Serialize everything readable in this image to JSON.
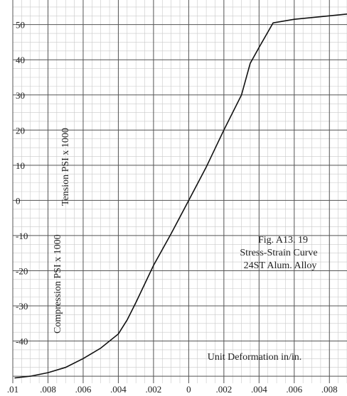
{
  "chart_data": {
    "type": "line",
    "caption": [
      "Fig. A13. 19",
      "Stress-Strain Curve",
      "24ST Alum. Alloy"
    ],
    "xlabel": "Unit Deformation in/in.",
    "ylabel_top": "Tension PSI x 1000",
    "ylabel_bottom": "Compression PSI x 1000",
    "xlim": [
      -0.01,
      0.009
    ],
    "ylim": [
      -52,
      57
    ],
    "x_ticks": [
      -0.01,
      -0.008,
      -0.006,
      -0.004,
      -0.002,
      0,
      0.002,
      0.004,
      0.006,
      0.008
    ],
    "x_tick_labels": [
      ".01",
      ".008",
      ".006",
      ".004",
      ".002",
      "0",
      ".002",
      ".004",
      ".006",
      ".008"
    ],
    "y_ticks": [
      50,
      40,
      30,
      20,
      10,
      0,
      -10,
      -20,
      -30,
      -40
    ],
    "y_tick_labels": [
      "50",
      "40",
      "30",
      "20",
      "10",
      "0",
      "-10",
      "-20",
      "-30",
      "-40"
    ],
    "grid": true,
    "series": [
      {
        "values": [
          [
            -0.0099,
            -50.5
          ],
          [
            -0.009,
            -50.0
          ],
          [
            -0.008,
            -49.0
          ],
          [
            -0.007,
            -47.5
          ],
          [
            -0.006,
            -45.0
          ],
          [
            -0.005,
            -42.0
          ],
          [
            -0.004,
            -38.0
          ],
          [
            -0.0035,
            -34.0
          ],
          [
            -0.003,
            -29.0
          ],
          [
            -0.002,
            -18.5
          ],
          [
            -0.001,
            -9.5
          ],
          [
            0,
            0
          ],
          [
            0.001,
            9.5
          ],
          [
            0.002,
            20.0
          ],
          [
            0.003,
            30.0
          ],
          [
            0.0035,
            39.0
          ],
          [
            0.004,
            43.5
          ],
          [
            0.0048,
            50.5
          ],
          [
            0.006,
            51.5
          ],
          [
            0.008,
            52.5
          ],
          [
            0.009,
            53.0
          ]
        ]
      }
    ]
  }
}
